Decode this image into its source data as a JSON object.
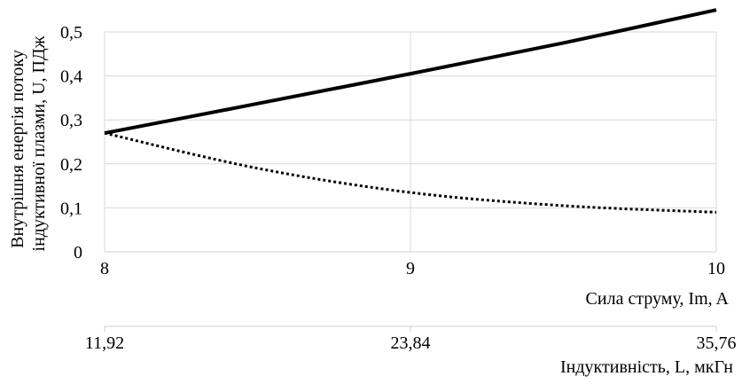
{
  "chart_data": {
    "type": "line",
    "ylabel_line1": "Внутрішня енергія потоку",
    "ylabel_line2": "індуктивної плазми, U, ПДж",
    "xlabel": "Сила струму, Im, A",
    "x2label": "Індуктивність, L, мкГн",
    "x": [
      8,
      8.5,
      9,
      9.5,
      10
    ],
    "x_ticks": [
      "8",
      "9",
      "10"
    ],
    "x2_ticks": [
      "11,92",
      "23,84",
      "35,76"
    ],
    "xlim": [
      8,
      10
    ],
    "ylim": [
      0,
      0.5
    ],
    "y_ticks": [
      "0",
      "0,1",
      "0,2",
      "0,3",
      "0,4",
      "0,5"
    ],
    "grid": true,
    "series": [
      {
        "style": "solid",
        "color": "#000000",
        "values": [
          0.27,
          0.337,
          0.405,
          0.475,
          0.55
        ]
      },
      {
        "style": "dotted",
        "color": "#000000",
        "values": [
          0.27,
          0.19,
          0.135,
          0.105,
          0.09
        ]
      }
    ]
  }
}
